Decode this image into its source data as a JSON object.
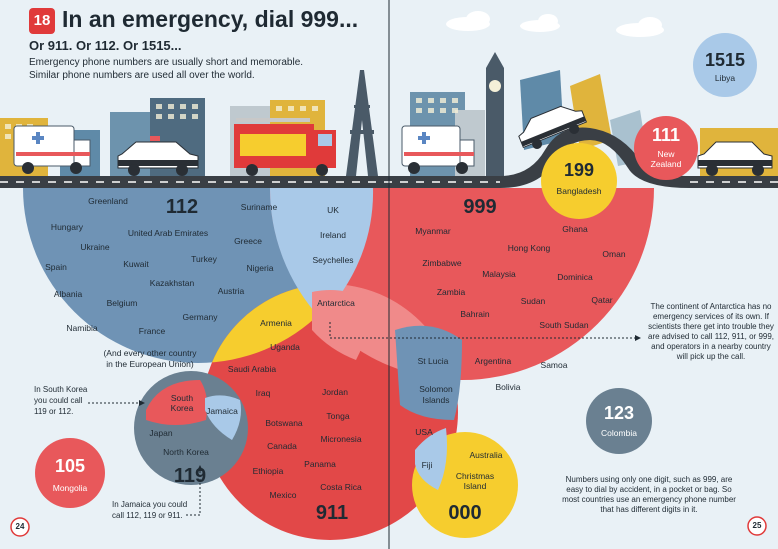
{
  "header": {
    "page_badge": "18",
    "title": "In an emergency, dial 999...",
    "subtitle": "Or 911. Or 112. Or 1515...",
    "intro_line1": "Emergency phone numbers are usually short and memorable.",
    "intro_line2": "Similar phone numbers are used all over the world."
  },
  "circles": {
    "c112": {
      "number": "112",
      "color": "#6f93b5"
    },
    "c999": {
      "number": "999",
      "color": "#e8585b"
    },
    "c911": {
      "number": "911",
      "color": "#e24848"
    },
    "c119": {
      "number": "119",
      "color": "#6a8091"
    },
    "c000": {
      "number": "000",
      "color": "#f6cd2e"
    },
    "c1515": {
      "number": "1515",
      "country": "Libya"
    },
    "c111": {
      "number": "111",
      "country1": "New",
      "country2": "Zealand"
    },
    "c199": {
      "number": "199",
      "country": "Bangladesh"
    },
    "c123": {
      "number": "123",
      "country": "Colombia"
    },
    "c105": {
      "number": "105",
      "country": "Mongolia"
    }
  },
  "countries": {
    "greenland": "Greenland",
    "suriname": "Suriname",
    "uk": "UK",
    "ireland": "Ireland",
    "seychelles": "Seychelles",
    "hungary": "Hungary",
    "uae": "United Arab Emirates",
    "ukraine": "Ukraine",
    "greece": "Greece",
    "turkey": "Turkey",
    "spain": "Spain",
    "kuwait": "Kuwait",
    "nigeria": "Nigeria",
    "kazakhstan": "Kazakhstan",
    "austria": "Austria",
    "albania": "Albania",
    "belgium": "Belgium",
    "germany": "Germany",
    "namibia": "Namibia",
    "france": "France",
    "other_eu1": "(And every other country",
    "other_eu2": "in the European Union)",
    "armenia": "Armenia",
    "uganda": "Uganda",
    "saudi_arabia": "Saudi Arabia",
    "iraq": "Iraq",
    "antarctica": "Antarctica",
    "south_korea1": "South",
    "south_korea2": "Korea",
    "jamaica": "Jamaica",
    "japan": "Japan",
    "north_korea": "North Korea",
    "botswana": "Botswana",
    "canada": "Canada",
    "ethiopia": "Ethiopia",
    "mexico": "Mexico",
    "jordan": "Jordan",
    "tonga": "Tonga",
    "micronesia": "Micronesia",
    "panama": "Panama",
    "costa_rica": "Costa Rica",
    "myanmar": "Myanmar",
    "ghana": "Ghana",
    "hong_kong": "Hong Kong",
    "oman": "Oman",
    "zimbabwe": "Zimbabwe",
    "malaysia": "Malaysia",
    "dominica": "Dominica",
    "zambia": "Zambia",
    "qatar": "Qatar",
    "bahrain": "Bahrain",
    "sudan": "Sudan",
    "south_sudan": "South Sudan",
    "argentina": "Argentina",
    "samoa": "Samoa",
    "bolivia": "Bolivia",
    "st_lucia": "St Lucia",
    "solomon1": "Solomon",
    "solomon2": "Islands",
    "usa": "USA",
    "fiji": "Fiji",
    "australia": "Australia",
    "christmas1": "Christmas",
    "christmas2": "Island"
  },
  "notes": {
    "korea_line1": "In South Korea",
    "korea_line2": "you could call",
    "korea_line3": "119 or 112.",
    "jamaica_line1": "In Jamaica you could",
    "jamaica_line2": "call 112, 119 or 911.",
    "antarctica": "The continent of Antarctica has no emergency services of its own. If scientists there get into trouble they are advised to call 112, 911, or 999, and operators in a nearby country will pick up the call.",
    "one_digit": "Numbers using only one digit, such as 999, are easy to dial by accident, in a pocket or bag. So most countries use an emergency phone number that has different digits in it."
  },
  "footer": {
    "page_left": "24",
    "page_right": "25"
  },
  "colors": {
    "sky": "#e9f1f6",
    "road": "#3a3f45",
    "badge_red": "#e03a3a",
    "blue": "#6f93b5",
    "red": "#e8585b",
    "yellow": "#f6cd2e",
    "light_blue": "#a9c9e8",
    "pink": "#f08a8a"
  }
}
